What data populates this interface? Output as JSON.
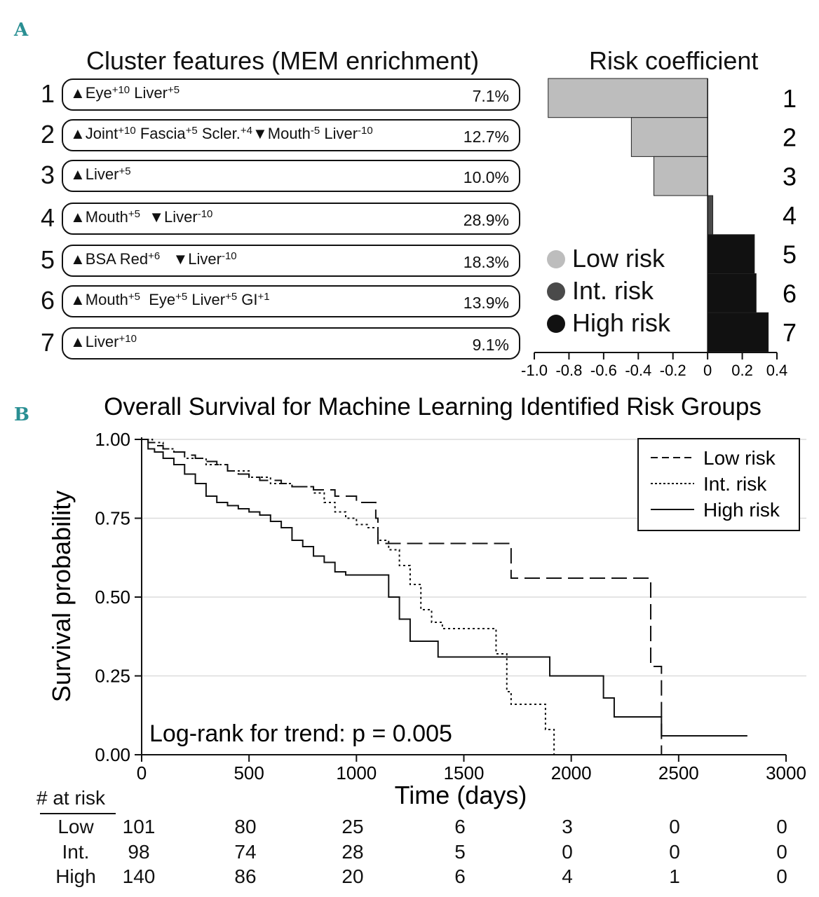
{
  "panel_a": {
    "letter": "A",
    "cluster_heading": "Cluster features (MEM enrichment)",
    "risk_heading": "Risk coefficient",
    "rows": [
      {
        "num": "1",
        "segments": [
          {
            "t": "▲Eye"
          },
          {
            "sup": "+10"
          },
          {
            "t": " Liver"
          },
          {
            "sup": "+5"
          }
        ],
        "pct": "7.1%"
      },
      {
        "num": "2",
        "segments": [
          {
            "t": "▲Joint"
          },
          {
            "sup": "+10"
          },
          {
            "t": " Fascia"
          },
          {
            "sup": "+5"
          },
          {
            "t": " Scler."
          },
          {
            "sup": "+4"
          },
          {
            "t": "▼Mouth"
          },
          {
            "sup": "-5"
          },
          {
            "t": " Liver"
          },
          {
            "sup": "-10"
          }
        ],
        "pct": "12.7%"
      },
      {
        "num": "3",
        "segments": [
          {
            "t": "▲Liver"
          },
          {
            "sup": "+5"
          }
        ],
        "pct": "10.0%"
      },
      {
        "num": "4",
        "segments": [
          {
            "t": "▲Mouth"
          },
          {
            "sup": "+5"
          },
          {
            "t": "  ▼Liver"
          },
          {
            "sup": "-10"
          }
        ],
        "pct": "28.9%"
      },
      {
        "num": "5",
        "segments": [
          {
            "t": "▲BSA Red"
          },
          {
            "sup": "+6"
          },
          {
            "t": "   ▼Liver"
          },
          {
            "sup": "-10"
          }
        ],
        "pct": "18.3%"
      },
      {
        "num": "6",
        "segments": [
          {
            "t": "▲Mouth"
          },
          {
            "sup": "+5"
          },
          {
            "t": "  Eye"
          },
          {
            "sup": "+5"
          },
          {
            "t": " Liver"
          },
          {
            "sup": "+5"
          },
          {
            "t": " GI"
          },
          {
            "sup": "+1"
          }
        ],
        "pct": "13.9%"
      },
      {
        "num": "7",
        "segments": [
          {
            "t": "▲Liver"
          },
          {
            "sup": "+10"
          }
        ],
        "pct": "9.1%"
      }
    ],
    "legend": [
      {
        "label": "Low risk",
        "color": "#bdbdbd"
      },
      {
        "label": "Int. risk",
        "color": "#4a4a4a"
      },
      {
        "label": "High risk",
        "color": "#111111"
      }
    ]
  },
  "chart_data": [
    {
      "type": "bar",
      "orientation": "horizontal",
      "title": "Risk coefficient",
      "categories": [
        "1",
        "2",
        "3",
        "4",
        "5",
        "6",
        "7"
      ],
      "values": [
        -0.92,
        -0.44,
        -0.31,
        0.03,
        0.27,
        0.28,
        0.35
      ],
      "risk_group": [
        "Low risk",
        "Low risk",
        "Low risk",
        "Int. risk",
        "High risk",
        "High risk",
        "High risk"
      ],
      "xlim": [
        -1.0,
        0.4
      ],
      "xticks": [
        -1.0,
        -0.8,
        -0.6,
        -0.4,
        -0.2,
        0,
        0.2,
        0.4
      ],
      "xtick_labels": [
        "-1.0",
        "-0.8",
        "-0.6",
        "-0.4",
        "-0.2",
        "0",
        "0.2",
        "0.4"
      ],
      "colors": {
        "Low risk": "#bdbdbd",
        "Int. risk": "#4a4a4a",
        "High risk": "#111111"
      }
    },
    {
      "type": "line",
      "subtype": "kaplan-meier",
      "panel_letter": "B",
      "title": "Overall Survival for Machine Learning Identified Risk Groups",
      "xlabel": "Time (days)",
      "ylabel": "Survival probability",
      "xlim": [
        0,
        3000
      ],
      "ylim": [
        0,
        1
      ],
      "xticks": [
        0,
        500,
        1000,
        1500,
        2000,
        2500,
        3000
      ],
      "yticks": [
        0,
        0.25,
        0.5,
        0.75,
        1.0
      ],
      "ytick_labels": [
        "0.00",
        "0.25",
        "0.50",
        "0.75",
        "1.00"
      ],
      "grid": "horizontal",
      "annotation": "Log-rank for trend: p = 0.005",
      "legend_position": "top-right",
      "series": [
        {
          "name": "Low risk",
          "style": "dashed",
          "x": [
            0,
            30,
            60,
            100,
            150,
            200,
            250,
            300,
            350,
            400,
            450,
            500,
            550,
            600,
            650,
            700,
            800,
            900,
            1000,
            1060,
            1090,
            1100,
            1720,
            1720,
            2370,
            2370,
            2420,
            2420
          ],
          "y": [
            1.0,
            0.99,
            0.98,
            0.97,
            0.96,
            0.95,
            0.94,
            0.93,
            0.92,
            0.9,
            0.89,
            0.88,
            0.87,
            0.87,
            0.86,
            0.85,
            0.84,
            0.82,
            0.8,
            0.8,
            0.75,
            0.67,
            0.67,
            0.56,
            0.56,
            0.28,
            0.28,
            0.0
          ]
        },
        {
          "name": "Int. risk",
          "style": "dotted",
          "x": [
            0,
            50,
            100,
            150,
            200,
            300,
            400,
            500,
            600,
            700,
            800,
            850,
            900,
            950,
            1000,
            1050,
            1100,
            1150,
            1200,
            1250,
            1300,
            1350,
            1400,
            1500,
            1600,
            1650,
            1700,
            1720,
            1800,
            1880,
            1920,
            1920
          ],
          "y": [
            1.0,
            0.99,
            0.97,
            0.96,
            0.94,
            0.92,
            0.9,
            0.88,
            0.86,
            0.85,
            0.83,
            0.8,
            0.77,
            0.75,
            0.73,
            0.72,
            0.68,
            0.65,
            0.6,
            0.54,
            0.46,
            0.42,
            0.4,
            0.4,
            0.4,
            0.32,
            0.2,
            0.16,
            0.16,
            0.08,
            0.05,
            0.0
          ]
        },
        {
          "name": "High risk",
          "style": "solid",
          "x": [
            0,
            30,
            60,
            100,
            150,
            200,
            250,
            300,
            350,
            400,
            450,
            500,
            550,
            600,
            650,
            700,
            750,
            800,
            850,
            900,
            950,
            1000,
            1100,
            1150,
            1200,
            1250,
            1300,
            1380,
            1500,
            1700,
            1800,
            1900,
            2000,
            2100,
            2150,
            2200,
            2300,
            2420,
            2500,
            2820
          ],
          "y": [
            1.0,
            0.97,
            0.96,
            0.94,
            0.92,
            0.89,
            0.86,
            0.82,
            0.8,
            0.79,
            0.78,
            0.77,
            0.76,
            0.74,
            0.72,
            0.68,
            0.66,
            0.63,
            0.61,
            0.58,
            0.57,
            0.57,
            0.57,
            0.5,
            0.43,
            0.36,
            0.36,
            0.31,
            0.31,
            0.31,
            0.31,
            0.25,
            0.25,
            0.25,
            0.18,
            0.12,
            0.12,
            0.06,
            0.06,
            0.06
          ]
        }
      ]
    }
  ],
  "risk_table": {
    "header": "# at risk",
    "times": [
      "0",
      "500",
      "1000",
      "1500",
      "2000",
      "2500",
      "3000"
    ],
    "rows": [
      {
        "label": "Low",
        "values": [
          "101",
          "80",
          "25",
          "6",
          "3",
          "0",
          "0"
        ]
      },
      {
        "label": "Int.",
        "values": [
          "98",
          "74",
          "28",
          "5",
          "0",
          "0",
          "0"
        ]
      },
      {
        "label": "High",
        "values": [
          "140",
          "86",
          "20",
          "6",
          "4",
          "1",
          "0"
        ]
      }
    ]
  }
}
